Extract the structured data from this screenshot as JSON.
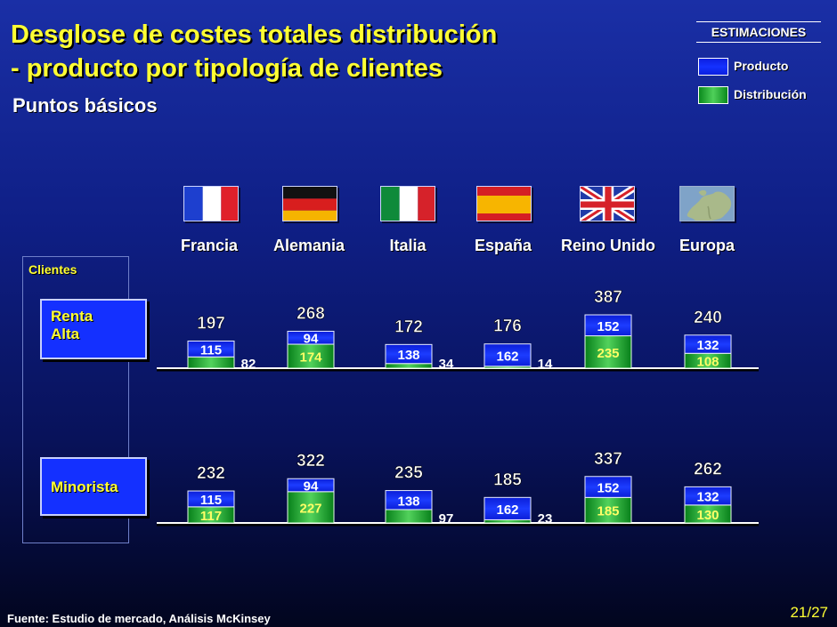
{
  "title_line1": "Desglose de costes totales distribución",
  "title_line2": "- producto por tipología de clientes",
  "subtitle": "Puntos básicos",
  "legend": {
    "title": "ESTIMACIONES",
    "items": [
      {
        "label": "Producto",
        "color": "#1432ff"
      },
      {
        "label": "Distribución",
        "color": "#22b03a"
      }
    ]
  },
  "clients_label": "Clientes",
  "segments": {
    "high_line1": "Renta",
    "high_line2": "Alta",
    "retail": "Minorista"
  },
  "countries": [
    {
      "name": "Francia",
      "flag": "france-flag-icon"
    },
    {
      "name": "Alemania",
      "flag": "germany-flag-icon"
    },
    {
      "name": "Italia",
      "flag": "italy-flag-icon"
    },
    {
      "name": "España",
      "flag": "spain-flag-icon"
    },
    {
      "name": "Reino Unido",
      "flag": "uk-flag-icon"
    },
    {
      "name": "Europa",
      "flag": "europe-map-icon"
    }
  ],
  "chart_data": {
    "type": "bar",
    "stacked": true,
    "categories": [
      "Francia",
      "Alemania",
      "Italia",
      "España",
      "Reino Unido",
      "Europa"
    ],
    "groups": [
      {
        "name": "Renta Alta",
        "series": [
          {
            "name": "Producto",
            "values": [
              115,
              94,
              138,
              162,
              152,
              132
            ]
          },
          {
            "name": "Distribución",
            "values": [
              82,
              174,
              34,
              14,
              235,
              108
            ]
          }
        ],
        "totals": [
          197,
          268,
          172,
          176,
          387,
          240
        ]
      },
      {
        "name": "Minorista",
        "series": [
          {
            "name": "Producto",
            "values": [
              115,
              94,
              138,
              162,
              152,
              132
            ]
          },
          {
            "name": "Distribución",
            "values": [
              117,
              227,
              97,
              23,
              185,
              130
            ]
          }
        ],
        "totals": [
          232,
          322,
          235,
          185,
          337,
          262
        ]
      }
    ]
  },
  "source": "Fuente: Estudio de mercado, Análisis McKinsey",
  "page": "21/27"
}
